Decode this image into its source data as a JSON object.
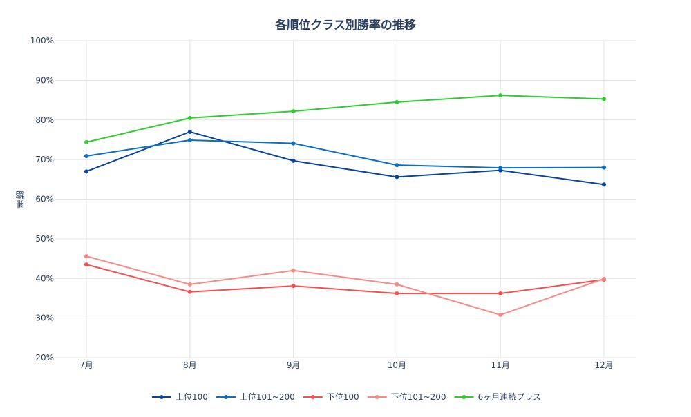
{
  "chart_data": {
    "type": "line",
    "title": "各順位クラス別勝率の推移",
    "xlabel": "",
    "ylabel": "勝率",
    "categories": [
      "7月",
      "8月",
      "9月",
      "10月",
      "11月",
      "12月"
    ],
    "ylim": [
      20,
      100
    ],
    "yticks": [
      "20%",
      "30%",
      "40%",
      "50%",
      "60%",
      "70%",
      "80%",
      "90%",
      "100%"
    ],
    "ytick_values": [
      20,
      30,
      40,
      50,
      60,
      70,
      80,
      90,
      100
    ],
    "grid": true,
    "legend_position": "bottom",
    "series": [
      {
        "name": "上位100",
        "color": "#08449a",
        "values": [
          67.0,
          77.0,
          69.7,
          65.6,
          67.3,
          63.7
        ]
      },
      {
        "name": "上位101~200",
        "color": "#0a6fbd",
        "values": [
          70.9,
          74.9,
          74.1,
          68.6,
          67.9,
          68.0
        ]
      },
      {
        "name": "下位100",
        "color": "#f44f4f",
        "values": [
          43.5,
          36.6,
          38.1,
          36.2,
          36.2,
          39.7
        ]
      },
      {
        "name": "下位101~200",
        "color": "#f88a86",
        "values": [
          45.6,
          38.5,
          42.0,
          38.5,
          30.8,
          39.9
        ]
      },
      {
        "name": "6ヶ月連続プラス",
        "color": "#2ecc2e",
        "values": [
          74.4,
          80.5,
          82.2,
          84.5,
          86.2,
          85.3
        ]
      }
    ]
  }
}
